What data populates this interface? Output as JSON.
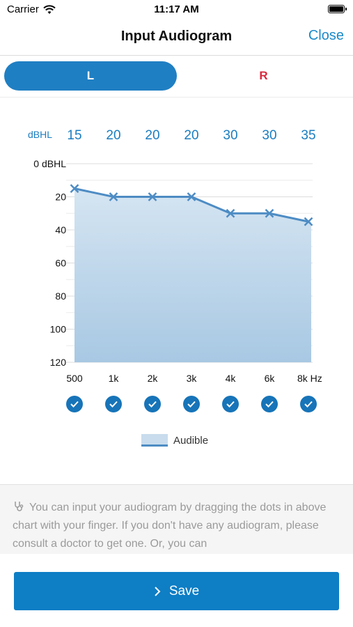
{
  "status_bar": {
    "carrier": "Carrier",
    "time": "11:17 AM"
  },
  "nav": {
    "title": "Input Audiogram",
    "close_label": "Close"
  },
  "segment": {
    "left_label": "L",
    "right_label": "R"
  },
  "chart_data": {
    "type": "area",
    "row_label": "dBHL",
    "x": [
      "500",
      "1k",
      "2k",
      "3k",
      "4k",
      "6k",
      "8k Hz"
    ],
    "values": [
      15,
      20,
      20,
      20,
      30,
      30,
      35
    ],
    "y_ticks": [
      "0 dBHL",
      "20",
      "40",
      "60",
      "80",
      "100",
      "120"
    ],
    "ylim": [
      0,
      120
    ],
    "y_inverted": true,
    "legend": "Audible",
    "colors": {
      "line": "#4d8cc4",
      "area_top": "#d5e5f2",
      "area_bottom": "#a8c8e3",
      "value_text": "#1a7dc0",
      "check": "#1774b8"
    }
  },
  "info": {
    "text": "You can input your audiogram by dragging the dots in above chart with your finger. If you don't have any audiogram, please consult a doctor to get one. Or, you can"
  },
  "save": {
    "label": "Save"
  }
}
